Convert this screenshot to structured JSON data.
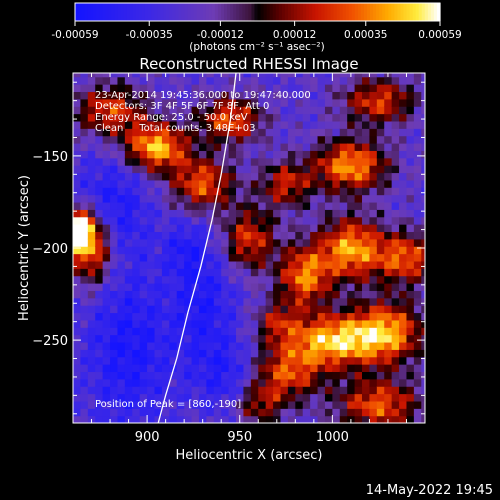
{
  "chart_data": {
    "type": "heatmap",
    "title": "Reconstructed RHESSI Image",
    "xlabel": "Heliocentric X (arcsec)",
    "ylabel": "Heliocentric Y (arcsec)",
    "xlim": [
      860,
      1050
    ],
    "ylim": [
      -295,
      -105
    ],
    "x_ticks": [
      900,
      950,
      1000
    ],
    "y_ticks": [
      -150,
      -200,
      -250
    ],
    "colorbar": {
      "ticks": [
        "-0.00059",
        "-0.00035",
        "-0.00012",
        "0.00012",
        "0.00035",
        "0.00059"
      ],
      "range": [
        -0.00059,
        0.00059
      ],
      "units": "(photons cm⁻² s⁻¹ asec⁻²)"
    },
    "info": {
      "time_range": "23-Apr-2014 19:45:36.000 to 19:47:40.000",
      "detectors": "Detectors: 3F 4F 5F 6F 7F 8F, Att 0",
      "energy": "Energy Range: 25.0 - 50.0 keV",
      "method": "Clean     Total counts: 3.48E+03"
    },
    "peak_label": "Position of Peak = [860,-190]",
    "peak": [
      860,
      -190
    ],
    "limb_arc": [
      [
        948,
        -105
      ],
      [
        945,
        -130
      ],
      [
        940,
        -160
      ],
      [
        935,
        -185
      ],
      [
        929,
        -210
      ],
      [
        922,
        -235
      ],
      [
        916,
        -260
      ],
      [
        910,
        -280
      ],
      [
        906,
        -295
      ]
    ],
    "bright_regions": [
      {
        "x": 863,
        "y": -190,
        "sx": 6,
        "sy": 8,
        "amp": 1.6
      },
      {
        "x": 870,
        "y": -200,
        "sx": 9,
        "sy": 14,
        "amp": 1.2
      },
      {
        "x": 905,
        "y": -145,
        "sx": 12,
        "sy": 9,
        "amp": 1.3
      },
      {
        "x": 880,
        "y": -125,
        "sx": 14,
        "sy": 10,
        "amp": 0.9
      },
      {
        "x": 945,
        "y": -130,
        "sx": 12,
        "sy": 9,
        "amp": 1.0
      },
      {
        "x": 930,
        "y": -165,
        "sx": 12,
        "sy": 10,
        "amp": 1.0
      },
      {
        "x": 955,
        "y": -195,
        "sx": 10,
        "sy": 12,
        "amp": 0.9
      },
      {
        "x": 975,
        "y": -165,
        "sx": 10,
        "sy": 9,
        "amp": 0.8
      },
      {
        "x": 1010,
        "y": -155,
        "sx": 14,
        "sy": 10,
        "amp": 1.2
      },
      {
        "x": 1010,
        "y": -200,
        "sx": 12,
        "sy": 12,
        "amp": 1.2
      },
      {
        "x": 1040,
        "y": -205,
        "sx": 12,
        "sy": 10,
        "amp": 1.0
      },
      {
        "x": 1025,
        "y": -120,
        "sx": 14,
        "sy": 9,
        "amp": 0.9
      },
      {
        "x": 985,
        "y": -215,
        "sx": 10,
        "sy": 12,
        "amp": 1.1
      },
      {
        "x": 1000,
        "y": -250,
        "sx": 18,
        "sy": 10,
        "amp": 1.3
      },
      {
        "x": 1030,
        "y": -245,
        "sx": 14,
        "sy": 12,
        "amp": 1.1
      },
      {
        "x": 975,
        "y": -268,
        "sx": 14,
        "sy": 10,
        "amp": 0.9
      },
      {
        "x": 1025,
        "y": -285,
        "sx": 16,
        "sy": 10,
        "amp": 1.0
      },
      {
        "x": 960,
        "y": -285,
        "sx": 10,
        "sy": 8,
        "amp": 0.7
      },
      {
        "x": 970,
        "y": -240,
        "sx": 8,
        "sy": 8,
        "amp": 0.6
      }
    ],
    "dark_regions": [
      {
        "x": 880,
        "y": -180,
        "sx": 14,
        "sy": 20,
        "amp": 1.0
      },
      {
        "x": 890,
        "y": -255,
        "sx": 16,
        "sy": 30,
        "amp": 1.0
      },
      {
        "x": 930,
        "y": -230,
        "sx": 12,
        "sy": 25,
        "amp": 0.9
      },
      {
        "x": 945,
        "y": -270,
        "sx": 12,
        "sy": 14,
        "amp": 0.8
      },
      {
        "x": 920,
        "y": -200,
        "sx": 8,
        "sy": 10,
        "amp": 0.6
      }
    ]
  },
  "footer": {
    "timestamp": "14-May-2022 19:45"
  }
}
